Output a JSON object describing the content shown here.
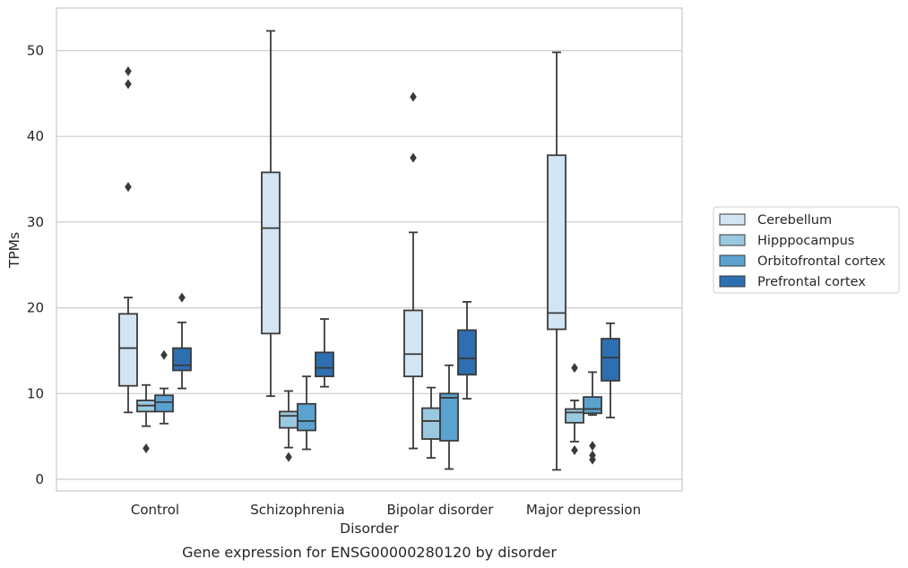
{
  "chart_data": {
    "type": "box",
    "xlabel": "Disorder",
    "ylabel": "TPMs",
    "caption": "Gene expression for ENSG00000280120 by disorder",
    "ylim": [
      -1.3,
      55
    ],
    "yticks": [
      0,
      10,
      20,
      30,
      40,
      50
    ],
    "grid": "horizontal",
    "legend_position": "right",
    "categories": [
      "Control",
      "Schizophrenia",
      "Bipolar disorder",
      "Major depression"
    ],
    "colors": {
      "Cerebellum": "#d3e4f3",
      "Hipppocampus": "#9ac8e0",
      "Orbitofrontal cortex": "#5aa2cf",
      "Prefrontal cortex": "#2d6fb0",
      "line": "#3a3a3a",
      "grid": "#cccccc"
    },
    "series": [
      {
        "name": "Cerebellum",
        "boxes": [
          {
            "min": 7.8,
            "q1": 10.9,
            "median": 15.3,
            "q3": 19.3,
            "max": 21.2,
            "outliers": [
              34.1,
              46.1,
              47.6
            ]
          },
          {
            "min": 9.7,
            "q1": 17.0,
            "median": 29.3,
            "q3": 35.8,
            "max": 52.3,
            "outliers": []
          },
          {
            "min": 3.6,
            "q1": 12.0,
            "median": 14.6,
            "q3": 19.7,
            "max": 28.8,
            "outliers": [
              37.5,
              44.6
            ]
          },
          {
            "min": 1.1,
            "q1": 17.5,
            "median": 19.4,
            "q3": 37.8,
            "max": 49.8,
            "outliers": []
          }
        ]
      },
      {
        "name": "Hipppocampus",
        "boxes": [
          {
            "min": 6.2,
            "q1": 7.9,
            "median": 8.6,
            "q3": 9.2,
            "max": 11.0,
            "outliers": [
              3.6
            ]
          },
          {
            "min": 3.7,
            "q1": 6.0,
            "median": 7.4,
            "q3": 7.9,
            "max": 10.3,
            "outliers": [
              2.6
            ]
          },
          {
            "min": 2.5,
            "q1": 4.7,
            "median": 6.8,
            "q3": 8.3,
            "max": 10.7,
            "outliers": []
          },
          {
            "min": 4.4,
            "q1": 6.6,
            "median": 7.8,
            "q3": 8.2,
            "max": 9.2,
            "outliers": [
              3.4,
              13.0
            ]
          }
        ]
      },
      {
        "name": "Orbitofrontal cortex",
        "boxes": [
          {
            "min": 6.5,
            "q1": 7.9,
            "median": 9.0,
            "q3": 9.8,
            "max": 10.6,
            "outliers": [
              14.5
            ]
          },
          {
            "min": 3.5,
            "q1": 5.7,
            "median": 6.8,
            "q3": 8.8,
            "max": 12.0,
            "outliers": []
          },
          {
            "min": 1.2,
            "q1": 4.5,
            "median": 9.5,
            "q3": 10.0,
            "max": 13.3,
            "outliers": []
          },
          {
            "min": 7.5,
            "q1": 7.7,
            "median": 8.2,
            "q3": 9.6,
            "max": 12.5,
            "outliers": [
              2.3,
              2.8,
              3.9
            ]
          }
        ]
      },
      {
        "name": "Prefrontal cortex",
        "boxes": [
          {
            "min": 10.6,
            "q1": 12.7,
            "median": 13.3,
            "q3": 15.3,
            "max": 18.3,
            "outliers": [
              21.2
            ]
          },
          {
            "min": 10.8,
            "q1": 12.0,
            "median": 13.0,
            "q3": 14.8,
            "max": 18.7,
            "outliers": []
          },
          {
            "min": 9.4,
            "q1": 12.2,
            "median": 14.1,
            "q3": 17.4,
            "max": 20.7,
            "outliers": []
          },
          {
            "min": 7.2,
            "q1": 11.5,
            "median": 14.2,
            "q3": 16.4,
            "max": 18.2,
            "outliers": []
          }
        ]
      }
    ]
  }
}
